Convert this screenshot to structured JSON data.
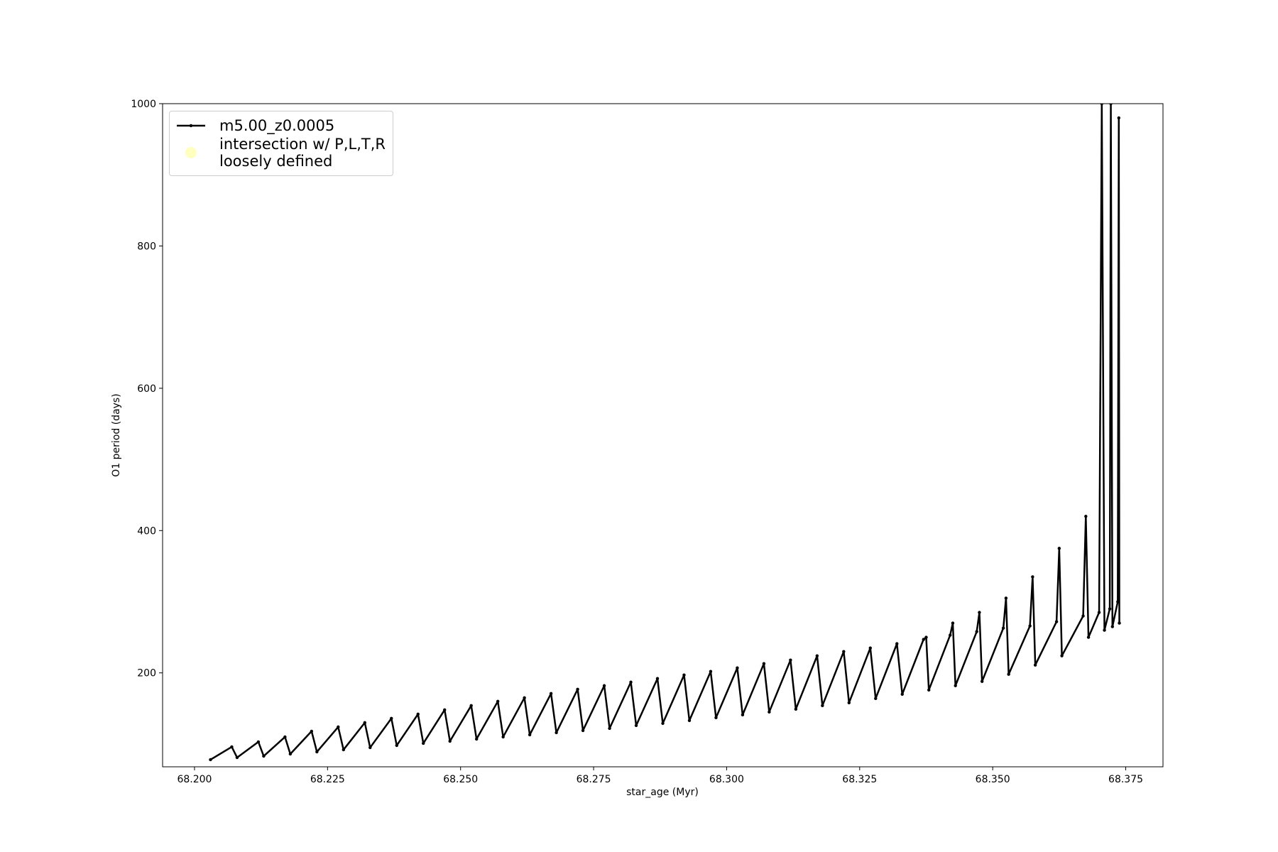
{
  "chart_data": {
    "type": "line",
    "xlabel": "star_age (Myr)",
    "ylabel": "O1 period (days)",
    "xlim": [
      68.194,
      68.382
    ],
    "ylim": [
      68,
      1000
    ],
    "xticks": [
      {
        "value": 68.2,
        "label": "68.200"
      },
      {
        "value": 68.225,
        "label": "68.225"
      },
      {
        "value": 68.25,
        "label": "68.250"
      },
      {
        "value": 68.275,
        "label": "68.275"
      },
      {
        "value": 68.3,
        "label": "68.300"
      },
      {
        "value": 68.325,
        "label": "68.325"
      },
      {
        "value": 68.35,
        "label": "68.350"
      },
      {
        "value": 68.375,
        "label": "68.375"
      }
    ],
    "yticks": [
      200,
      400,
      600,
      800,
      1000
    ],
    "grid": false,
    "legend": "upper left",
    "series": [
      {
        "name": "m5.00_z0.0005",
        "color": "#000000",
        "x": [
          68.203,
          68.207,
          68.208,
          68.212,
          68.213,
          68.217,
          68.218,
          68.222,
          68.223,
          68.227,
          68.228,
          68.232,
          68.233,
          68.237,
          68.238,
          68.242,
          68.243,
          68.247,
          68.248,
          68.252,
          68.253,
          68.257,
          68.258,
          68.262,
          68.263,
          68.267,
          68.268,
          68.272,
          68.273,
          68.277,
          68.278,
          68.282,
          68.283,
          68.287,
          68.288,
          68.292,
          68.293,
          68.297,
          68.298,
          68.302,
          68.303,
          68.307,
          68.308,
          68.312,
          68.313,
          68.317,
          68.318,
          68.322,
          68.323,
          68.327,
          68.328,
          68.332,
          68.333,
          68.337,
          68.3375,
          68.338,
          68.342,
          68.3425,
          68.343,
          68.347,
          68.3475,
          68.348,
          68.352,
          68.3525,
          68.353,
          68.357,
          68.3575,
          68.358,
          68.362,
          68.3625,
          68.363,
          68.367,
          68.3675,
          68.368,
          68.37,
          68.3705,
          68.371,
          68.372,
          68.3722,
          68.3725,
          68.3735,
          68.3737,
          68.3738
        ],
        "y": [
          78,
          96,
          81,
          103,
          83,
          110,
          86,
          118,
          89,
          124,
          92,
          130,
          95,
          136,
          98,
          142,
          101,
          148,
          104,
          154,
          107,
          160,
          110,
          165,
          113,
          171,
          116,
          177,
          119,
          182,
          122,
          187,
          126,
          192,
          129,
          197,
          133,
          202,
          137,
          207,
          141,
          213,
          145,
          218,
          149,
          224,
          154,
          230,
          158,
          235,
          164,
          241,
          170,
          247,
          250,
          176,
          253,
          270,
          182,
          258,
          285,
          188,
          263,
          305,
          198,
          266,
          335,
          211,
          272,
          375,
          224,
          280,
          420,
          250,
          285,
          1000,
          260,
          290,
          1000,
          265,
          300,
          980,
          270
        ]
      },
      {
        "name": "intersection w/ P,L,T,R\nloosely defined",
        "color": "#ffffc0"
      }
    ]
  }
}
